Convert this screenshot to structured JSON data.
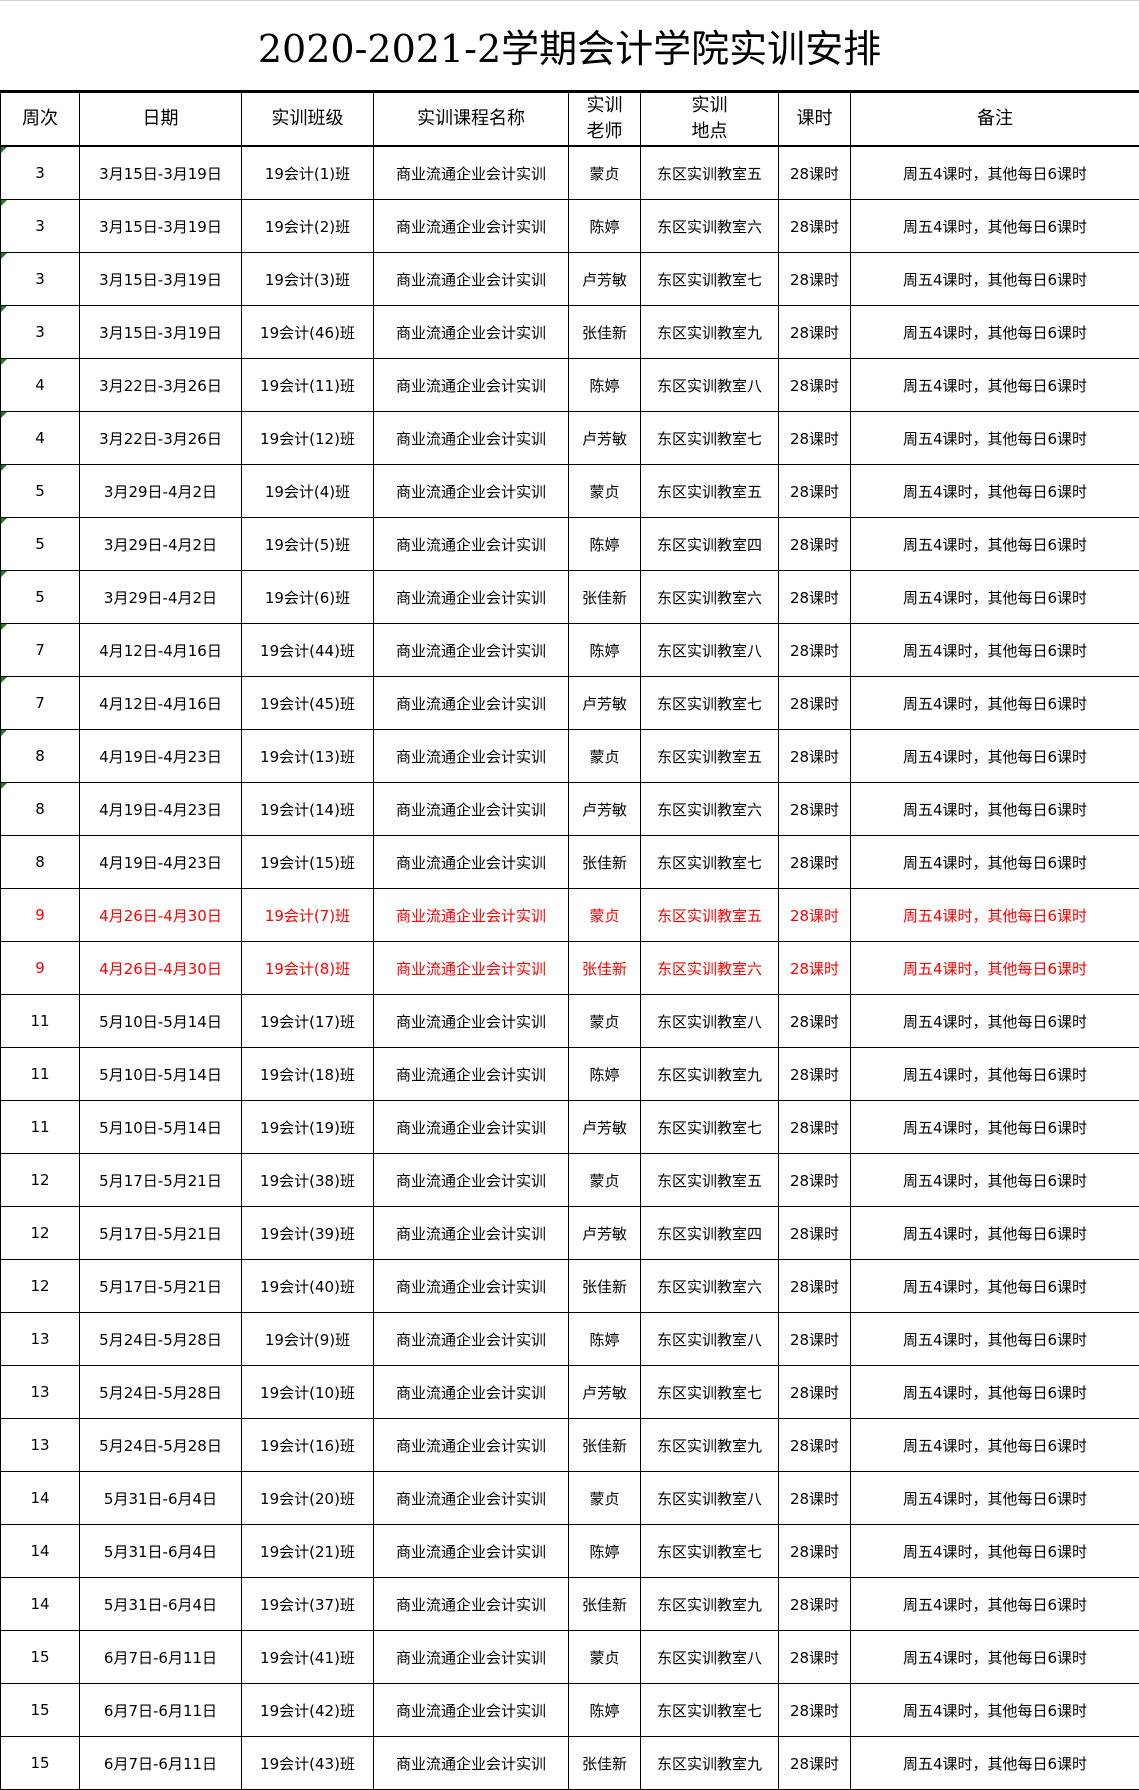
{
  "title": "2020-2021-2学期会计学院实训安排",
  "headers": [
    "周次",
    "日期",
    "实训班级",
    "实训课程名称",
    "实训\n老师",
    "实训\n地点",
    "课时",
    "备注"
  ],
  "colors": {
    "highlight_text": "#ff0000",
    "comment_marker": "#1a7f1a"
  },
  "rows": [
    {
      "week": "3",
      "date": "3月15日-3月19日",
      "class": "19会计(1)班",
      "course": "商业流通企业会计实训",
      "teacher": "蒙贞",
      "location": "东区实训教室五",
      "hours": "28课时",
      "note": "周五4课时，其他每日6课时",
      "marker": true
    },
    {
      "week": "3",
      "date": "3月15日-3月19日",
      "class": "19会计(2)班",
      "course": "商业流通企业会计实训",
      "teacher": "陈婷",
      "location": "东区实训教室六",
      "hours": "28课时",
      "note": "周五4课时，其他每日6课时",
      "marker": true
    },
    {
      "week": "3",
      "date": "3月15日-3月19日",
      "class": "19会计(3)班",
      "course": "商业流通企业会计实训",
      "teacher": "卢芳敏",
      "location": "东区实训教室七",
      "hours": "28课时",
      "note": "周五4课时，其他每日6课时",
      "marker": true
    },
    {
      "week": "3",
      "date": "3月15日-3月19日",
      "class": "19会计(46)班",
      "course": "商业流通企业会计实训",
      "teacher": "张佳新",
      "location": "东区实训教室九",
      "hours": "28课时",
      "note": "周五4课时，其他每日6课时",
      "marker": true
    },
    {
      "week": "4",
      "date": "3月22日-3月26日",
      "class": "19会计(11)班",
      "course": "商业流通企业会计实训",
      "teacher": "陈婷",
      "location": "东区实训教室八",
      "hours": "28课时",
      "note": "周五4课时，其他每日6课时",
      "marker": true
    },
    {
      "week": "4",
      "date": "3月22日-3月26日",
      "class": "19会计(12)班",
      "course": "商业流通企业会计实训",
      "teacher": "卢芳敏",
      "location": "东区实训教室七",
      "hours": "28课时",
      "note": "周五4课时，其他每日6课时",
      "marker": true
    },
    {
      "week": "5",
      "date": "3月29日-4月2日",
      "class": "19会计(4)班",
      "course": "商业流通企业会计实训",
      "teacher": "蒙贞",
      "location": "东区实训教室五",
      "hours": "28课时",
      "note": "周五4课时，其他每日6课时",
      "marker": true
    },
    {
      "week": "5",
      "date": "3月29日-4月2日",
      "class": "19会计(5)班",
      "course": "商业流通企业会计实训",
      "teacher": "陈婷",
      "location": "东区实训教室四",
      "hours": "28课时",
      "note": "周五4课时，其他每日6课时",
      "marker": true
    },
    {
      "week": "5",
      "date": "3月29日-4月2日",
      "class": "19会计(6)班",
      "course": "商业流通企业会计实训",
      "teacher": "张佳新",
      "location": "东区实训教室六",
      "hours": "28课时",
      "note": "周五4课时，其他每日6课时",
      "marker": true
    },
    {
      "week": "7",
      "date": "4月12日-4月16日",
      "class": "19会计(44)班",
      "course": "商业流通企业会计实训",
      "teacher": "陈婷",
      "location": "东区实训教室八",
      "hours": "28课时",
      "note": "周五4课时，其他每日6课时",
      "marker": true
    },
    {
      "week": "7",
      "date": "4月12日-4月16日",
      "class": "19会计(45)班",
      "course": "商业流通企业会计实训",
      "teacher": "卢芳敏",
      "location": "东区实训教室七",
      "hours": "28课时",
      "note": "周五4课时，其他每日6课时",
      "marker": true
    },
    {
      "week": "8",
      "date": "4月19日-4月23日",
      "class": "19会计(13)班",
      "course": "商业流通企业会计实训",
      "teacher": "蒙贞",
      "location": "东区实训教室五",
      "hours": "28课时",
      "note": "周五4课时，其他每日6课时",
      "marker": true
    },
    {
      "week": "8",
      "date": "4月19日-4月23日",
      "class": "19会计(14)班",
      "course": "商业流通企业会计实训",
      "teacher": "卢芳敏",
      "location": "东区实训教室六",
      "hours": "28课时",
      "note": "周五4课时，其他每日6课时",
      "marker": true
    },
    {
      "week": "8",
      "date": "4月19日-4月23日",
      "class": "19会计(15)班",
      "course": "商业流通企业会计实训",
      "teacher": "张佳新",
      "location": "东区实训教室七",
      "hours": "28课时",
      "note": "周五4课时，其他每日6课时",
      "marker": false
    },
    {
      "week": "9",
      "date": "4月26日-4月30日",
      "class": "19会计(7)班",
      "course": "商业流通企业会计实训",
      "teacher": "蒙贞",
      "location": "东区实训教室五",
      "hours": "28课时",
      "note": "周五4课时，其他每日6课时",
      "highlight": true
    },
    {
      "week": "9",
      "date": "4月26日-4月30日",
      "class": "19会计(8)班",
      "course": "商业流通企业会计实训",
      "teacher": "张佳新",
      "location": "东区实训教室六",
      "hours": "28课时",
      "note": "周五4课时，其他每日6课时",
      "highlight": true
    },
    {
      "week": "11",
      "date": "5月10日-5月14日",
      "class": "19会计(17)班",
      "course": "商业流通企业会计实训",
      "teacher": "蒙贞",
      "location": "东区实训教室八",
      "hours": "28课时",
      "note": "周五4课时，其他每日6课时"
    },
    {
      "week": "11",
      "date": "5月10日-5月14日",
      "class": "19会计(18)班",
      "course": "商业流通企业会计实训",
      "teacher": "陈婷",
      "location": "东区实训教室九",
      "hours": "28课时",
      "note": "周五4课时，其他每日6课时"
    },
    {
      "week": "11",
      "date": "5月10日-5月14日",
      "class": "19会计(19)班",
      "course": "商业流通企业会计实训",
      "teacher": "卢芳敏",
      "location": "东区实训教室七",
      "hours": "28课时",
      "note": "周五4课时，其他每日6课时"
    },
    {
      "week": "12",
      "date": "5月17日-5月21日",
      "class": "19会计(38)班",
      "course": "商业流通企业会计实训",
      "teacher": "蒙贞",
      "location": "东区实训教室五",
      "hours": "28课时",
      "note": "周五4课时，其他每日6课时"
    },
    {
      "week": "12",
      "date": "5月17日-5月21日",
      "class": "19会计(39)班",
      "course": "商业流通企业会计实训",
      "teacher": "卢芳敏",
      "location": "东区实训教室四",
      "hours": "28课时",
      "note": "周五4课时，其他每日6课时"
    },
    {
      "week": "12",
      "date": "5月17日-5月21日",
      "class": "19会计(40)班",
      "course": "商业流通企业会计实训",
      "teacher": "张佳新",
      "location": "东区实训教室六",
      "hours": "28课时",
      "note": "周五4课时，其他每日6课时"
    },
    {
      "week": "13",
      "date": "5月24日-5月28日",
      "class": "19会计(9)班",
      "course": "商业流通企业会计实训",
      "teacher": "陈婷",
      "location": "东区实训教室八",
      "hours": "28课时",
      "note": "周五4课时，其他每日6课时"
    },
    {
      "week": "13",
      "date": "5月24日-5月28日",
      "class": "19会计(10)班",
      "course": "商业流通企业会计实训",
      "teacher": "卢芳敏",
      "location": "东区实训教室七",
      "hours": "28课时",
      "note": "周五4课时，其他每日6课时"
    },
    {
      "week": "13",
      "date": "5月24日-5月28日",
      "class": "19会计(16)班",
      "course": "商业流通企业会计实训",
      "teacher": "张佳新",
      "location": "东区实训教室九",
      "hours": "28课时",
      "note": "周五4课时，其他每日6课时"
    },
    {
      "week": "14",
      "date": "5月31日-6月4日",
      "class": "19会计(20)班",
      "course": "商业流通企业会计实训",
      "teacher": "蒙贞",
      "location": "东区实训教室八",
      "hours": "28课时",
      "note": "周五4课时，其他每日6课时"
    },
    {
      "week": "14",
      "date": "5月31日-6月4日",
      "class": "19会计(21)班",
      "course": "商业流通企业会计实训",
      "teacher": "陈婷",
      "location": "东区实训教室七",
      "hours": "28课时",
      "note": "周五4课时，其他每日6课时"
    },
    {
      "week": "14",
      "date": "5月31日-6月4日",
      "class": "19会计(37)班",
      "course": "商业流通企业会计实训",
      "teacher": "张佳新",
      "location": "东区实训教室九",
      "hours": "28课时",
      "note": "周五4课时，其他每日6课时"
    },
    {
      "week": "15",
      "date": "6月7日-6月11日",
      "class": "19会计(41)班",
      "course": "商业流通企业会计实训",
      "teacher": "蒙贞",
      "location": "东区实训教室八",
      "hours": "28课时",
      "note": "周五4课时，其他每日6课时"
    },
    {
      "week": "15",
      "date": "6月7日-6月11日",
      "class": "19会计(42)班",
      "course": "商业流通企业会计实训",
      "teacher": "陈婷",
      "location": "东区实训教室七",
      "hours": "28课时",
      "note": "周五4课时，其他每日6课时"
    },
    {
      "week": "15",
      "date": "6月7日-6月11日",
      "class": "19会计(43)班",
      "course": "商业流通企业会计实训",
      "teacher": "张佳新",
      "location": "东区实训教室九",
      "hours": "28课时",
      "note": "周五4课时，其他每日6课时"
    }
  ]
}
